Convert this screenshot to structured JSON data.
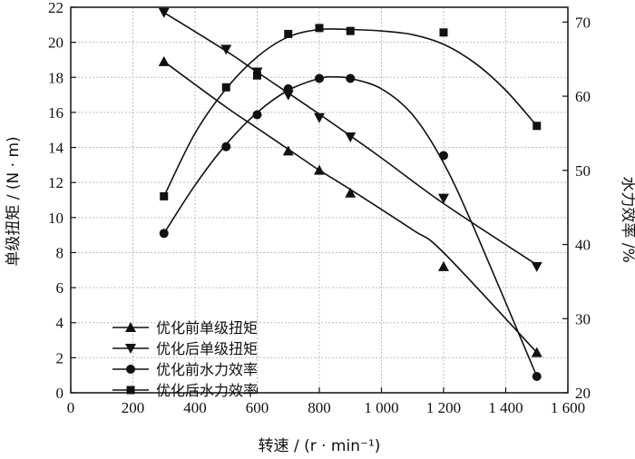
{
  "chart_data": {
    "type": "line",
    "xlabel": "转速 / (r · min⁻¹)",
    "ylabel": "单级扭矩 / (N · m)",
    "y2label": "水力效率 /%",
    "xlim": [
      0,
      1600
    ],
    "ylim": [
      0,
      22
    ],
    "y2lim": [
      20,
      72
    ],
    "xticks": [
      0,
      200,
      400,
      600,
      800,
      1000,
      1200,
      1400,
      1600
    ],
    "xtick_labels": [
      "0",
      "200",
      "400",
      "600",
      "800",
      "1 000",
      "1 200",
      "1 400",
      "1 600"
    ],
    "yticks": [
      0,
      2,
      4,
      6,
      8,
      10,
      12,
      14,
      16,
      18,
      20,
      22
    ],
    "y2ticks": [
      20,
      30,
      40,
      50,
      60,
      70
    ],
    "grid": true,
    "legend_position": "bottom-left",
    "series": [
      {
        "name": "优化前单级扭矩",
        "marker": "triangle-up",
        "axis": "left",
        "x": [
          300,
          700,
          800,
          900,
          1200,
          1500
        ],
        "y": [
          18.9,
          13.8,
          12.7,
          11.4,
          7.2,
          2.3
        ]
      },
      {
        "name": "优化后单级扭矩",
        "marker": "triangle-down",
        "axis": "left",
        "x": [
          300,
          500,
          600,
          700,
          800,
          900,
          1200,
          1500
        ],
        "y": [
          21.7,
          19.6,
          18.3,
          17.0,
          15.7,
          14.6,
          11.1,
          7.2
        ]
      },
      {
        "name": "优化前水力效率",
        "marker": "circle",
        "axis": "right",
        "x": [
          300,
          500,
          600,
          700,
          800,
          900,
          1200,
          1500
        ],
        "y": [
          41.5,
          53.2,
          57.5,
          61.0,
          62.4,
          62.4,
          52.0,
          22.2
        ]
      },
      {
        "name": "优化后水力效率",
        "marker": "square",
        "axis": "right",
        "x": [
          300,
          500,
          600,
          700,
          800,
          900,
          1200,
          1500
        ],
        "y": [
          46.5,
          61.2,
          62.8,
          68.4,
          69.2,
          68.8,
          68.6,
          56.0
        ]
      }
    ],
    "curves": [
      {
        "x": [
          300,
          500,
          600,
          750,
          800,
          900,
          1100,
          1200,
          1500
        ],
        "y": [
          18.9,
          16.3,
          15.1,
          13.3,
          12.7,
          11.6,
          9.3,
          8.0,
          2.3
        ]
      },
      {
        "x": [
          300,
          500,
          600,
          800,
          1000,
          1200,
          1500
        ],
        "y": [
          21.7,
          19.5,
          18.3,
          15.9,
          13.4,
          10.8,
          7.3
        ]
      },
      {
        "x": [
          300,
          400,
          500,
          600,
          700,
          800,
          850,
          900,
          1000,
          1100,
          1200,
          1300,
          1500
        ],
        "y": [
          41.5,
          48.0,
          53.5,
          57.8,
          60.8,
          62.4,
          62.6,
          62.4,
          61.0,
          57.5,
          51.0,
          42.0,
          22.2
        ]
      },
      {
        "x": [
          300,
          400,
          500,
          600,
          700,
          800,
          900,
          1000,
          1100,
          1200,
          1300,
          1400,
          1500
        ],
        "y": [
          46.5,
          55.0,
          61.0,
          65.3,
          68.0,
          69.0,
          69.0,
          68.8,
          68.3,
          67.0,
          64.5,
          60.8,
          56.0
        ]
      }
    ]
  }
}
